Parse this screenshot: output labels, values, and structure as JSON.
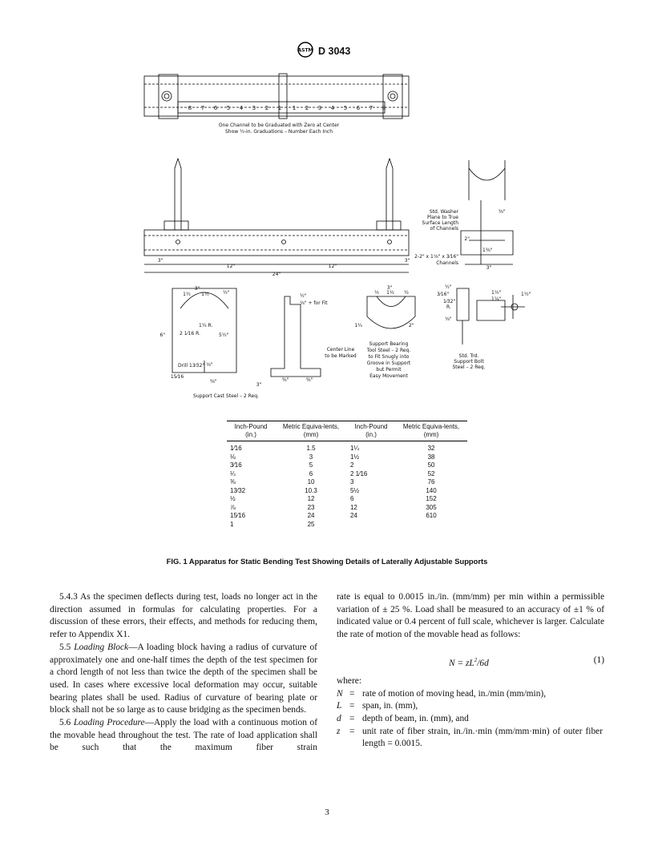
{
  "header": {
    "logo": "ASTM",
    "designation": "D 3043"
  },
  "figure": {
    "scale": [
      "8",
      "7",
      "6",
      "5",
      "4",
      "3",
      "2",
      "1",
      "1",
      "2",
      "3",
      "4",
      "5",
      "6",
      "7",
      "8"
    ],
    "labels": [
      "One Channel to be Graduated with Zero at Center",
      "Show ½-in. Graduations – Number Each Inch",
      "3\"",
      "12\"",
      "12\"",
      "3\"",
      "24\"",
      "Std. Washer",
      "Plane to True",
      "Surface Length",
      "of Channels",
      "⅜\"",
      "2\"",
      "1⅜\"",
      "2-2\" x 1⅛\" x 3⁄16\"",
      "Channels",
      "3\"",
      "3\"",
      "1½",
      "1½",
      "½\"",
      "6\"",
      "2 1⁄16 R.",
      "1¼ R.",
      "5½\"",
      "Drill 13⁄32\"",
      "⅛\"",
      "15⁄16",
      "⅜\"",
      "Support Cast Steel – 2 Req.",
      "½\"",
      "⅛\" + for Fit",
      "Center Line",
      "to be Marked",
      "3\"",
      "⅜\"",
      "⅜\"",
      "3\"",
      "½",
      "1½",
      "½",
      "1¼",
      "2\"",
      "Support Bearing",
      "Tool Steel – 2 Req.",
      "to Fit Snugly into",
      "Groove in Support",
      "but Permit",
      "Easy Movement",
      "½\"",
      "3⁄16\"",
      "1⁄32\"",
      "R.",
      "⅛\"",
      "1½\"",
      "1¼\"",
      "1½\"",
      "Std. Trd.",
      "Support Bolt",
      "Steel – 2 Req."
    ],
    "caption": "FIG. 1 Apparatus for Static Bending Test Showing Details of Laterally Adjustable Supports"
  },
  "table": {
    "headers": [
      "Inch-Pound (in.)",
      "Metric Equiva-lents, (mm)",
      "Inch-Pound (in.)",
      "Metric Equiva-lents, (mm)"
    ],
    "rows": [
      [
        "1⁄16",
        1.5,
        "1¼",
        32
      ],
      [
        "⅛",
        3,
        "1½",
        38
      ],
      [
        "3⁄16",
        5,
        "2",
        50
      ],
      [
        "¼",
        6,
        "2 1⁄16",
        52
      ],
      [
        "⅜",
        10,
        "3",
        76
      ],
      [
        "13⁄32",
        10.3,
        "5½",
        140
      ],
      [
        "½",
        12,
        "6",
        152
      ],
      [
        "⅞",
        23,
        "12",
        305
      ],
      [
        "15⁄16",
        24,
        "24",
        610
      ],
      [
        "1",
        25,
        null,
        null
      ]
    ]
  },
  "body": {
    "left": [
      {
        "number": "5.4.3",
        "heading": null,
        "text": "As the specimen deflects during test, loads no longer act in the direction assumed in formulas for calculating properties. For a discussion of these errors, their effects, and methods for reducing them, refer to Appendix X1."
      },
      {
        "number": "5.5",
        "heading": "Loading Block",
        "text": "—A loading block having a radius of curvature of approximately one and one-half times the depth of the test specimen for a chord length of not less than twice the depth of the specimen shall be used. In cases where excessive local deformation may occur, suitable bearing plates shall be used. Radius of curvature of bearing plate or block shall not be so large as to cause bridging as the specimen bends."
      },
      {
        "number": "5.6",
        "heading": "Loading Procedure",
        "text": "—Apply the load with a continuous motion of the movable head throughout the test. The rate of load application shall be such that the maximum fiber strain"
      }
    ],
    "right": {
      "text": "rate is equal to 0.0015 in./in. (mm/mm) per min within a permissible variation of ± 25 %. Load shall be measured to an accuracy of ±1 % of indicated value or 0.4 percent of full scale, whichever is larger. Calculate the rate of motion of the movable head as follows:",
      "equation": {
        "before": "N = zL",
        "exp": "2",
        "after": "/6d",
        "number": "(1)"
      },
      "where": "where:",
      "definitions": [
        {
          "symbol": "N",
          "text": "rate of motion of moving head, in./min (mm/min),"
        },
        {
          "symbol": "L",
          "text": "span, in. (mm),"
        },
        {
          "symbol": "d",
          "text": "depth of beam, in. (mm), and"
        },
        {
          "symbol": "z",
          "text": "unit rate of fiber strain, in./in.·min (mm/mm·min) of outer fiber length = 0.0015."
        }
      ]
    }
  },
  "footer": {
    "page": "3"
  }
}
